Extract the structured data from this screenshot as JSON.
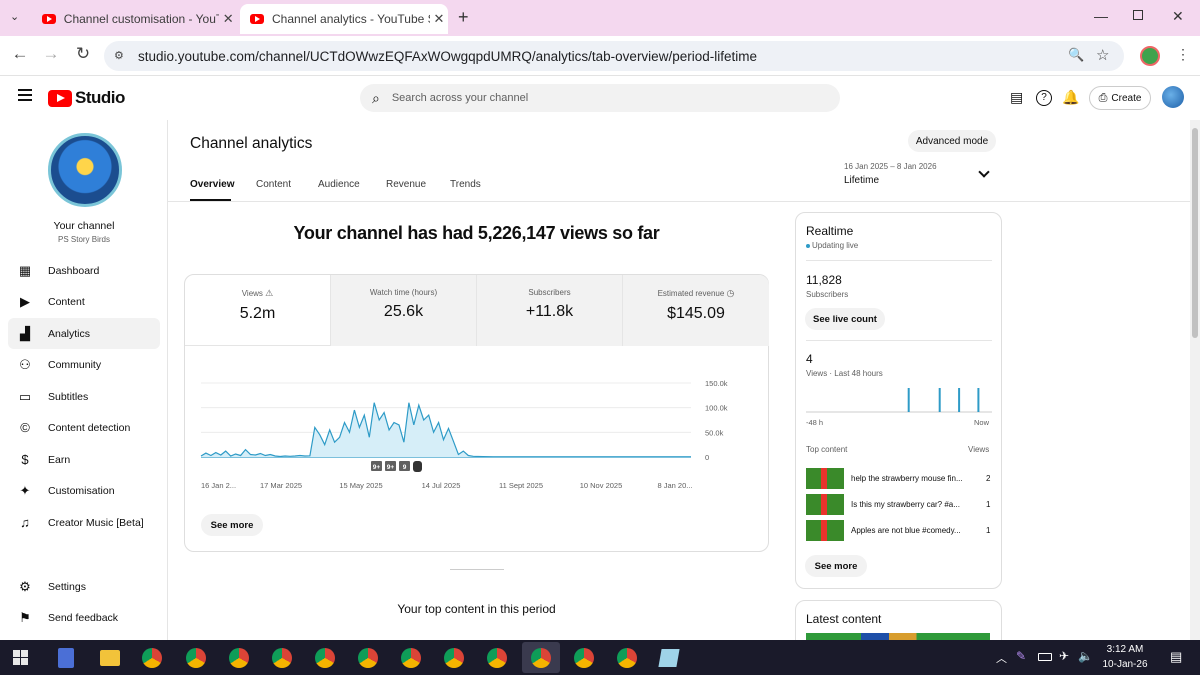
{
  "browser": {
    "tabs": [
      {
        "title": "Channel customisation - YouTube Studio",
        "active": false
      },
      {
        "title": "Channel analytics - YouTube Studio",
        "active": true
      }
    ],
    "new_tab": "+",
    "url": "studio.youtube.com/channel/UCTdOWwzEQFAxWOwgqpdUMRQ/analytics/tab-overview/period-lifetime",
    "window_controls": [
      "minimize",
      "restore",
      "close"
    ]
  },
  "header": {
    "logo_text": "Studio",
    "search_placeholder": "Search across your channel",
    "create_label": "Create"
  },
  "sidebar": {
    "channel_label": "Your channel",
    "channel_name": "PS Story Birds",
    "items": [
      {
        "label": "Dashboard",
        "icon": "dashboard-icon"
      },
      {
        "label": "Content",
        "icon": "content-icon"
      },
      {
        "label": "Analytics",
        "icon": "analytics-icon",
        "active": true
      },
      {
        "label": "Community",
        "icon": "community-icon"
      },
      {
        "label": "Subtitles",
        "icon": "subtitles-icon"
      },
      {
        "label": "Content detection",
        "icon": "copyright-icon"
      },
      {
        "label": "Earn",
        "icon": "dollar-icon"
      },
      {
        "label": "Customisation",
        "icon": "magic-wand-icon"
      },
      {
        "label": "Creator Music [Beta]",
        "icon": "music-icon"
      }
    ],
    "settings_label": "Settings",
    "feedback_label": "Send feedback"
  },
  "main": {
    "page_title": "Channel analytics",
    "advanced_mode": "Advanced mode",
    "tabs": [
      "Overview",
      "Content",
      "Audience",
      "Revenue",
      "Trends"
    ],
    "period_range": "16 Jan 2025 – 8 Jan 2026",
    "period_label": "Lifetime",
    "headline": "Your channel has had 5,226,147 views so far",
    "metrics": [
      {
        "label": "Views",
        "value": "5.2m",
        "icon": "warning-icon"
      },
      {
        "label": "Watch time (hours)",
        "value": "25.6k"
      },
      {
        "label": "Subscribers",
        "value": "+11.8k"
      },
      {
        "label": "Estimated revenue",
        "value": "$145.09",
        "icon": "clock-icon"
      }
    ],
    "see_more": "See more",
    "top_content_heading": "Your top content in this period"
  },
  "chart_data": {
    "type": "area",
    "x_tick_labels": [
      "16 Jan 2...",
      "17 Mar 2025",
      "15 May 2025",
      "14 Jul 2025",
      "11 Sept 2025",
      "10 Nov 2025",
      "8 Jan 20..."
    ],
    "y_tick_labels": [
      "150.0k",
      "100.0k",
      "50.0k",
      "0"
    ],
    "ylim": [
      0,
      150000
    ],
    "series": [
      {
        "values": [
          2000,
          8000,
          3000,
          9000,
          4000,
          12000,
          2000,
          6000,
          3000,
          15000,
          5000,
          4000,
          7000,
          3000,
          5000,
          2000,
          1000,
          2000,
          1500,
          2000,
          3000,
          2000,
          2500,
          60000,
          45000,
          25000,
          55000,
          30000,
          40000,
          70000,
          50000,
          95000,
          60000,
          85000,
          40000,
          110000,
          75000,
          90000,
          55000,
          70000,
          65000,
          30000,
          110000,
          65000,
          105000,
          75000,
          85000,
          50000,
          70000,
          35000,
          58000,
          32000,
          5000,
          12000,
          3000,
          1500,
          1000,
          800,
          600,
          500,
          500,
          500,
          500,
          500,
          500,
          500,
          500,
          500,
          500,
          500,
          500,
          500,
          500,
          500,
          500,
          500,
          500,
          500,
          500,
          500,
          500,
          500,
          500,
          500,
          500,
          500,
          500,
          500,
          500,
          500,
          500,
          500,
          500,
          500,
          500,
          500,
          500,
          500,
          500,
          500
        ]
      }
    ],
    "markers": [
      "9+",
      "9+",
      "9",
      "shorts-icon"
    ]
  },
  "realtime": {
    "title": "Realtime",
    "status": "Updating live",
    "subscribers_value": "11,828",
    "subscribers_label": "Subscribers",
    "see_live_count": "See live count",
    "views_value": "4",
    "views_label": "Views · Last 48 hours",
    "axis_start": "-48 h",
    "axis_end": "Now",
    "views_bars": [
      0,
      0,
      0,
      0,
      0,
      0,
      0,
      0,
      0,
      0,
      0,
      0,
      0,
      0,
      0,
      0,
      0,
      0,
      0,
      0,
      0,
      0,
      0,
      0,
      0,
      0,
      1,
      0,
      0,
      0,
      0,
      0,
      0,
      0,
      1,
      0,
      0,
      0,
      0,
      1,
      0,
      0,
      0,
      0,
      1,
      0,
      0,
      0
    ],
    "top_content_label": "Top content",
    "views_col_label": "Views",
    "top_content": [
      {
        "title": "help the strawberry mouse fin...",
        "views": "2"
      },
      {
        "title": "Is this my strawberry car? #a...",
        "views": "1"
      },
      {
        "title": "Apples are not blue #comedy...",
        "views": "1"
      }
    ],
    "see_more": "See more"
  },
  "latest_content": {
    "title": "Latest content"
  },
  "taskbar": {
    "time": "3:12 AM",
    "date": "10-Jan-26"
  },
  "colors": {
    "accent": "#065fd4",
    "chart_line": "#2e9bc7",
    "chart_fill": "#d6eef8",
    "youtube_red": "#ff0000",
    "realtime_bar": "#2e9bc7"
  }
}
